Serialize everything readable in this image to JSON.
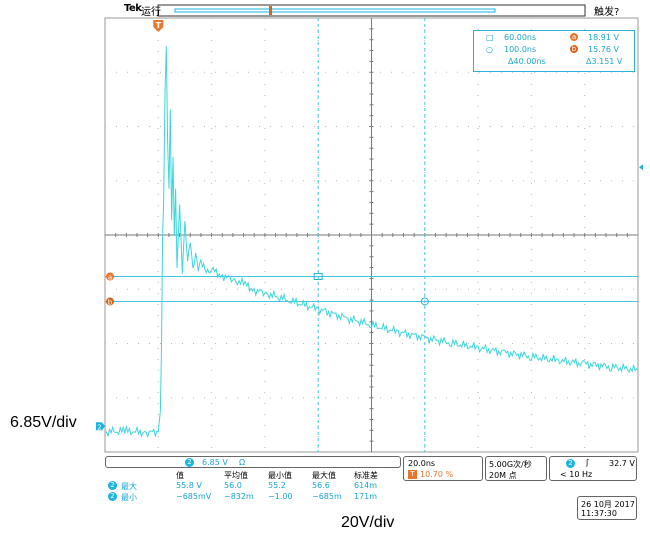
{
  "header": {
    "brand": "Tek",
    "run_status": "运行",
    "trigger_status": "触发?"
  },
  "cursors": {
    "a_time": "60.00ns",
    "b_time": "100.0ns",
    "delta_time": "Δ40.00ns",
    "a_label": "a",
    "b_label": "b",
    "a_value": "18.91 V",
    "b_value": "15.76 V",
    "delta_value": "Δ3.151 V"
  },
  "channel_bar": {
    "channel": "2",
    "scale": "6.85 V",
    "coupling": "Ω"
  },
  "timebase": {
    "time_per_div": "20.0ns",
    "trigger_pos_marker": "T",
    "trigger_pos": "10.70 %"
  },
  "acquisition": {
    "sample_rate": "5.00G次/秒",
    "record_length": "20M 点"
  },
  "trigger": {
    "channel": "2",
    "slope_symbol": "ʃ",
    "level": "32.7 V",
    "freq": "< 10 Hz"
  },
  "date": {
    "date": "26 10月 2017",
    "time": "11:37:30"
  },
  "measurements": {
    "headers": [
      "值",
      "平均值",
      "最小值",
      "最大值",
      "标准差"
    ],
    "rows": [
      {
        "channel": "2",
        "label": "最大",
        "values": [
          "55.8 V",
          "56.0",
          "55.2",
          "56.6",
          "614m"
        ]
      },
      {
        "channel": "2",
        "label": "最小",
        "values": [
          "−685mV",
          "−832m",
          "−1.00",
          "−685m",
          "171m"
        ]
      }
    ]
  },
  "markers": {
    "trigger_marker": "T",
    "channel_marker": "2"
  },
  "captions": {
    "y_scale": "6.85V/div",
    "x_scale": "20V/div"
  },
  "chart_data": {
    "type": "line",
    "grid": true,
    "x_unit": "ns",
    "y_unit": "V",
    "xlim": [
      -20,
      180
    ],
    "ylim": [
      -3.25,
      51.55
    ],
    "series": [
      {
        "color": "#3dd6dc",
        "x": [
          -20,
          -12,
          -4,
          0,
          0.8,
          1.2,
          1.6,
          2.0,
          2.5,
          3,
          3.5,
          4,
          4.5,
          5,
          5.5,
          6,
          6.5,
          7,
          8,
          9,
          10,
          11,
          12,
          13,
          14,
          15,
          16,
          18,
          20,
          24,
          28,
          32,
          36,
          40,
          50,
          60,
          70,
          80,
          90,
          100,
          110,
          120,
          130,
          140,
          150,
          160,
          170,
          180
        ],
        "y": [
          -0.7,
          -0.6,
          -0.8,
          -0.7,
          2,
          10,
          24,
          28,
          42,
          48,
          36,
          30,
          40,
          26,
          34,
          24,
          30,
          20,
          28,
          19,
          26,
          21,
          23,
          20,
          22,
          19.5,
          21,
          19.5,
          19.8,
          19,
          18.5,
          18,
          17.2,
          16.8,
          15.8,
          14.8,
          13.7,
          12.8,
          11.9,
          11.2,
          10.5,
          9.9,
          9.3,
          8.8,
          8.3,
          7.9,
          7.5,
          7.1
        ]
      }
    ],
    "cursors": {
      "vertical_ns": [
        60,
        100
      ],
      "horizontal_v": [
        18.91,
        15.76
      ]
    }
  }
}
